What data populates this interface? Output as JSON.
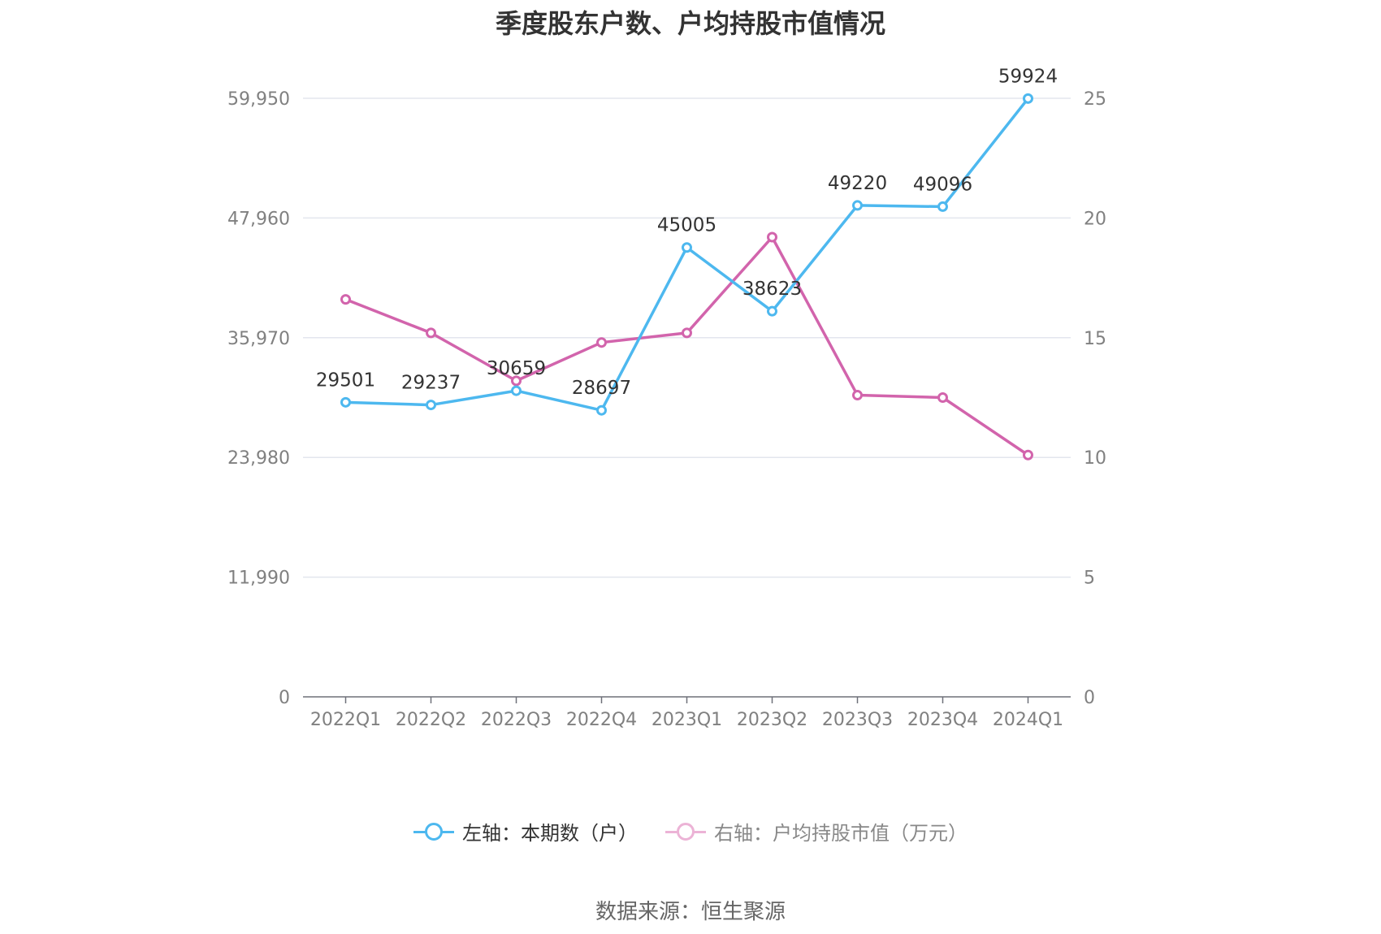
{
  "chart_data": {
    "type": "line",
    "title": "季度股东户数、户均持股市值情况",
    "categories": [
      "2022Q1",
      "2022Q2",
      "2022Q3",
      "2022Q4",
      "2023Q1",
      "2023Q2",
      "2023Q3",
      "2023Q4",
      "2024Q1"
    ],
    "left_axis": {
      "ylim": [
        0,
        59950
      ],
      "ticks": [
        "0",
        "11,990",
        "23,980",
        "35,970",
        "47,960",
        "59,950"
      ]
    },
    "right_axis": {
      "ylim": [
        0,
        25
      ],
      "ticks": [
        "0",
        "5",
        "10",
        "15",
        "20",
        "25"
      ]
    },
    "grid": true,
    "legend_position": "bottom",
    "series": [
      {
        "name": "左轴：本期数（户）",
        "axis": "left",
        "color": "#4db8ef",
        "values": [
          29501,
          29237,
          30659,
          28697,
          45005,
          38623,
          49220,
          49096,
          59924
        ],
        "labels": [
          "29501",
          "29237",
          "30659",
          "28697",
          "45005",
          "38623",
          "49220",
          "49096",
          "59924"
        ]
      },
      {
        "name": "右轴：户均持股市值（万元）",
        "axis": "right",
        "color": "#d264ac",
        "values": [
          16.6,
          15.2,
          13.2,
          14.8,
          15.2,
          19.2,
          12.6,
          12.5,
          10.1
        ]
      }
    ]
  },
  "source": "数据来源：恒生聚源"
}
